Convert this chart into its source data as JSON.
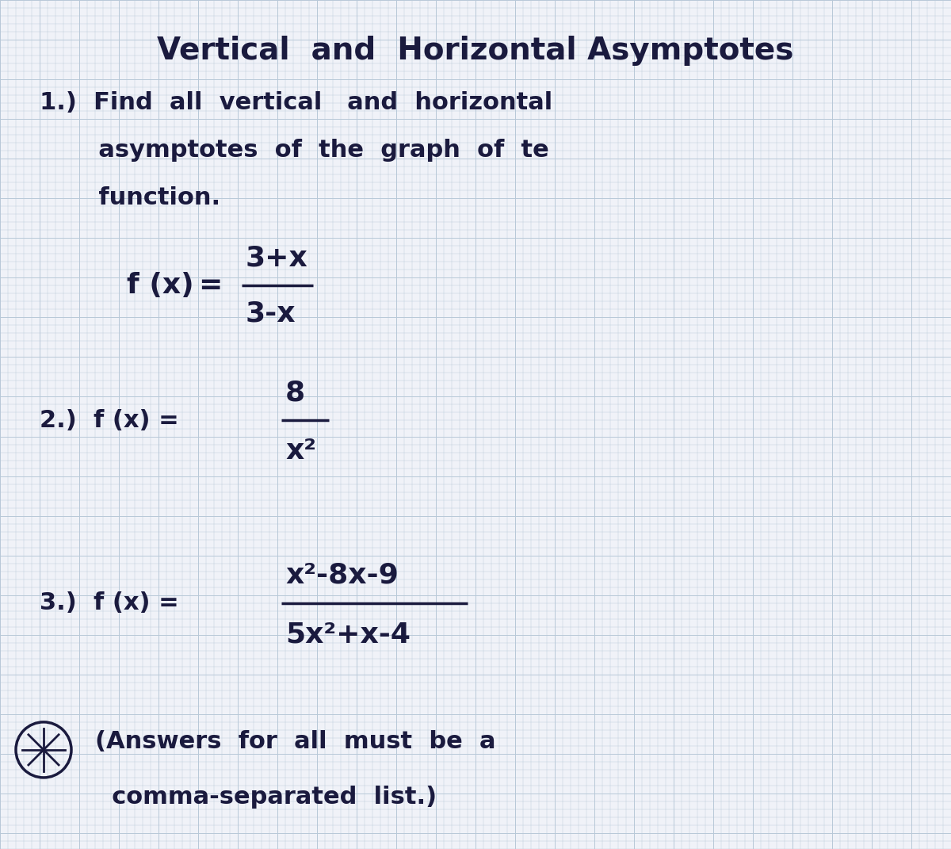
{
  "background_color": "#f0f2f8",
  "grid_color": "#b8c8d8",
  "text_color": "#1a1a3e",
  "title": "Vertical  and  Horizontal Asymptotes",
  "p1_line1": "1.)  Find  all  vertical   and  horizontal",
  "p1_line2": "       asymptotes  of  the  graph  of  te",
  "p1_line3": "       function.",
  "func1_fx": "f (x)",
  "func1_eq": "≈",
  "func1_num": "3+x",
  "func1_den": "3-x",
  "p2_label": "2.)  f (x) =",
  "func2_num": "8",
  "func2_den": "x²",
  "p3_label": "3.)  f (x) =",
  "func3_num": "x²-8x-9",
  "func3_den": "5x²+x-4",
  "note1": "(Answers  for  all  must  be  a",
  "note2": "  comma-separated  list.)"
}
